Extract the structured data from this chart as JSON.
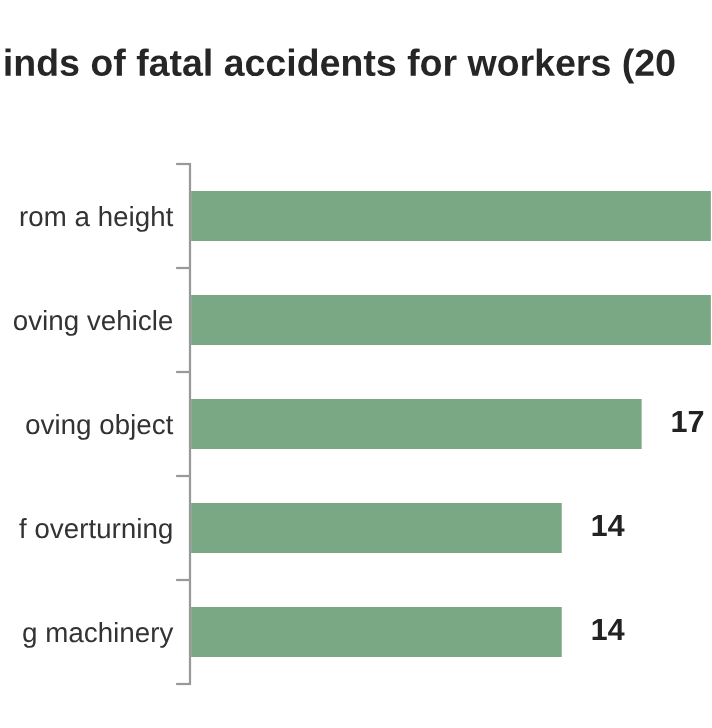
{
  "chart_data": {
    "type": "bar",
    "orientation": "horizontal",
    "title": "inds of fatal accidents for workers (20",
    "categories": [
      "rom a height",
      "oving vehicle",
      "oving object",
      "f overturning",
      "g machinery"
    ],
    "values": [
      19.6,
      19.6,
      17,
      14,
      14
    ],
    "value_labels": [
      null,
      null,
      "17",
      "14",
      "14"
    ],
    "color": "#7aa884",
    "xlim": [
      0,
      19.6
    ],
    "tick_labels": "y",
    "grid": false,
    "legend": false
  }
}
